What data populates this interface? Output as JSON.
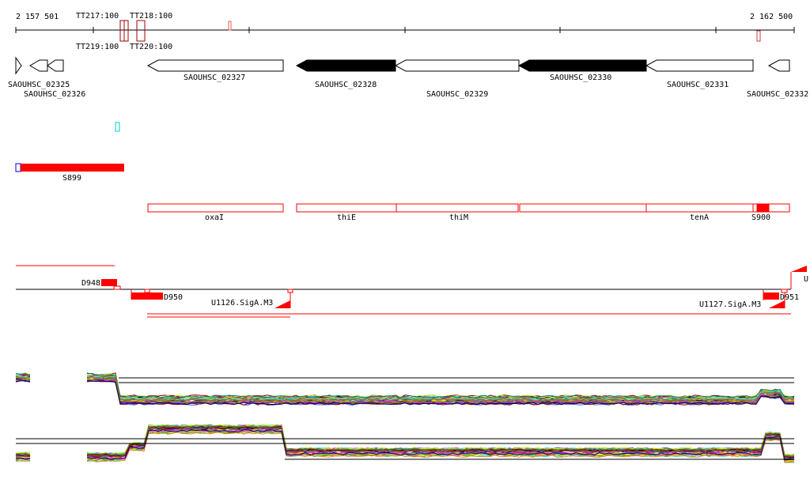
{
  "ruler": {
    "start_label": "2 157 501",
    "end_label": "2 162 500",
    "terminator_labels": [
      "TT217:100",
      "TT218:100",
      "TT219:100",
      "TT220:100"
    ]
  },
  "genes": [
    {
      "id": "SAOUHSC_02325",
      "strand": "+",
      "fill": "white"
    },
    {
      "id": "SAOUHSC_02326",
      "strand": "-",
      "fill": "white"
    },
    {
      "id": "SAOUHSC_02327",
      "strand": "-",
      "fill": "white"
    },
    {
      "id": "SAOUHSC_02328",
      "strand": "-",
      "fill": "black"
    },
    {
      "id": "SAOUHSC_02329",
      "strand": "-",
      "fill": "white"
    },
    {
      "id": "SAOUHSC_02330",
      "strand": "-",
      "fill": "black"
    },
    {
      "id": "SAOUHSC_02331",
      "strand": "-",
      "fill": "white"
    },
    {
      "id": "SAOUHSC_02332",
      "strand": "-",
      "fill": "white"
    }
  ],
  "segments": {
    "s899": "S899",
    "s900": "S900"
  },
  "operon_genes": [
    "oxaI",
    "thiE",
    "thiM",
    "",
    "tenA"
  ],
  "transcripts": {
    "d948": "D948",
    "d950": "D950",
    "d951": "D951",
    "u1126": "U1126.SigA.M3",
    "u1127": "U1127.SigA.M3",
    "u_edge": "U"
  },
  "colors": {
    "feature_red": "#ff0000",
    "terminator": "#a00000",
    "blue": "#0000cc",
    "cyan": "#00cccc"
  }
}
